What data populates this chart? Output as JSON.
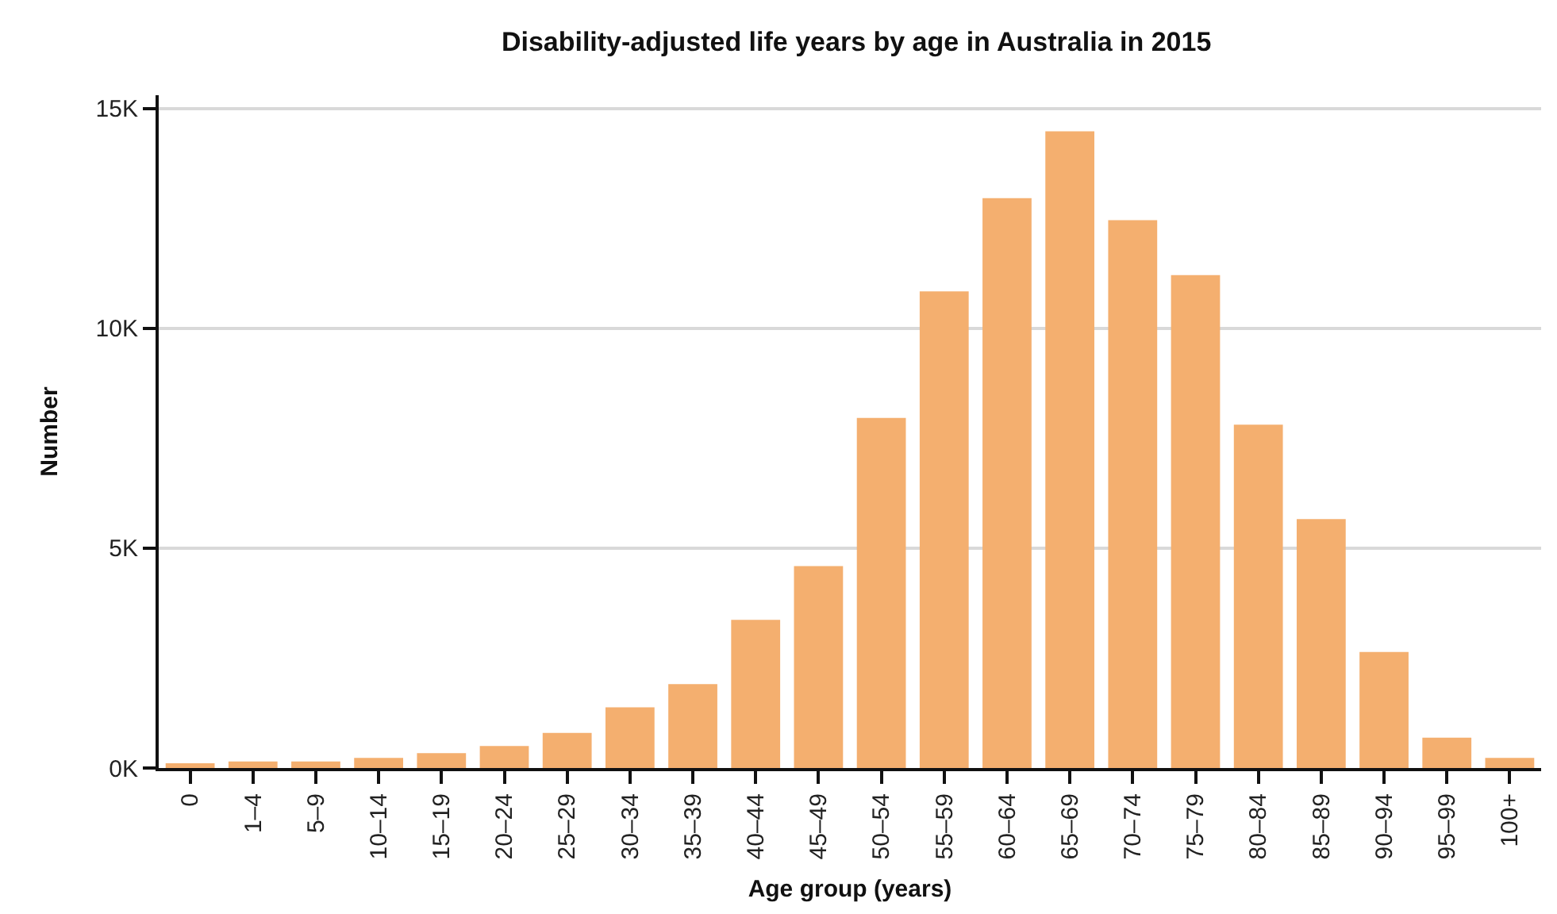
{
  "chart_data": {
    "type": "bar",
    "title": "Disability-adjusted life years by age in Australia in 2015",
    "xlabel": "Age group (years)",
    "ylabel": "Number",
    "categories": [
      "0",
      "1–4",
      "5–9",
      "10–14",
      "15–19",
      "20–24",
      "25–29",
      "30–34",
      "35–39",
      "40–44",
      "45–49",
      "50–54",
      "55–59",
      "60–64",
      "65–69",
      "70–74",
      "75–79",
      "80–84",
      "85–89",
      "90–94",
      "95–99",
      "100+"
    ],
    "values": [
      110,
      150,
      150,
      230,
      340,
      500,
      800,
      1380,
      1910,
      3370,
      4590,
      7960,
      10840,
      12960,
      14480,
      12460,
      11210,
      7810,
      5660,
      2640,
      690,
      230
    ],
    "color": "#f4af6f",
    "ylim": [
      0,
      15300
    ],
    "yticks": [
      {
        "value": 0,
        "label": "0K"
      },
      {
        "value": 5000,
        "label": "5K"
      },
      {
        "value": 10000,
        "label": "10K"
      },
      {
        "value": 15000,
        "label": "15K"
      }
    ],
    "grid": "y"
  }
}
